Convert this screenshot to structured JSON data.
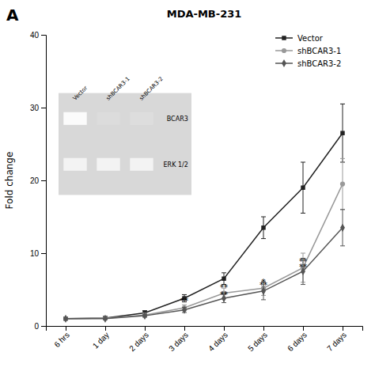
{
  "chart_data": {
    "type": "line",
    "title": "MDA-MB-231",
    "y_label": "Fold change",
    "categories": [
      "6 hrs",
      "1 day",
      "2 days",
      "3 days",
      "4 days",
      "5 days",
      "6 days",
      "7 days"
    ],
    "ylim": [
      0,
      40
    ],
    "yticks": [
      0,
      10,
      20,
      30,
      40
    ],
    "grid": false,
    "legend": "upper right",
    "series": [
      {
        "name": "Vector",
        "color": "#222222",
        "marker": "square",
        "line_style": "solid",
        "values": [
          1.0,
          1.1,
          1.8,
          3.8,
          6.5,
          13.5,
          19.0,
          26.5
        ],
        "errors": [
          0.1,
          0.15,
          0.3,
          0.5,
          0.8,
          1.5,
          3.5,
          4.0
        ]
      },
      {
        "name": "shBCAR3-1",
        "color": "#999999",
        "marker": "circle",
        "line_style": "solid",
        "values": [
          1.0,
          1.05,
          1.5,
          2.5,
          4.5,
          5.2,
          8.0,
          19.5
        ],
        "errors": [
          0.1,
          0.1,
          0.25,
          0.4,
          0.7,
          1.0,
          2.0,
          3.5
        ]
      },
      {
        "name": "shBCAR3-2",
        "color": "#555555",
        "marker": "diamond",
        "line_style": "solid",
        "values": [
          1.0,
          1.0,
          1.4,
          2.2,
          3.8,
          4.8,
          7.5,
          13.5
        ],
        "errors": [
          0.1,
          0.1,
          0.2,
          0.35,
          0.6,
          1.2,
          1.8,
          2.5
        ]
      }
    ],
    "annotations": [
      {
        "text": "**",
        "x": "3 days",
        "y": 3.0
      },
      {
        "text": "**",
        "x": "4 days",
        "y": 4.9
      },
      {
        "text": "**",
        "x": "4 days",
        "y": 3.9
      },
      {
        "text": "*",
        "x": "5 days",
        "y": 5.7
      },
      {
        "text": "**",
        "x": "5 days",
        "y": 5.2
      },
      {
        "text": "**",
        "x": "6 days",
        "y": 8.5
      },
      {
        "text": "**",
        "x": "6 days",
        "y": 7.7
      }
    ],
    "panel_label": "A",
    "inset": {
      "lanes": [
        "Vector",
        "shBCAR3-1",
        "shBCAR3-2"
      ],
      "bands": [
        "BCAR3",
        "ERK 1/2"
      ]
    }
  }
}
